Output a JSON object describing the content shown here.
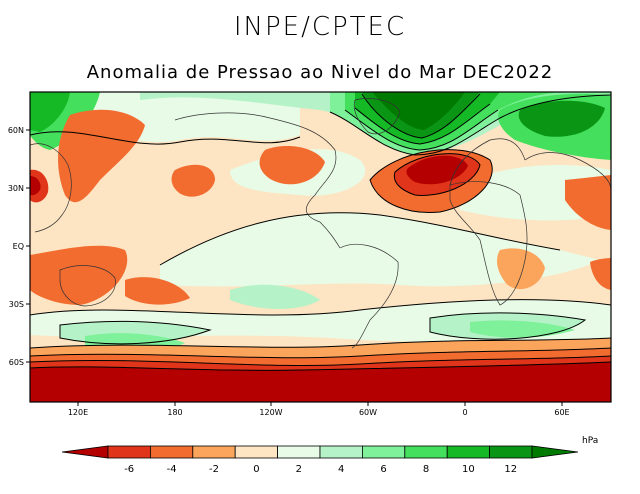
{
  "header": {
    "org": "INPE/CPTEC",
    "title": "Anomalia de Pressao ao Nivel do Mar DEC2022"
  },
  "map": {
    "lat_labels": [
      "60N",
      "30N",
      "EQ",
      "30S",
      "60S"
    ],
    "lon_labels": [
      "120E",
      "180",
      "120W",
      "60W",
      "0",
      "60E"
    ]
  },
  "colorbar": {
    "unit": "hPa",
    "ticks": [
      "-6",
      "-4",
      "-2",
      "0",
      "2",
      "4",
      "6",
      "8",
      "10",
      "12"
    ],
    "colors": [
      "#b40000",
      "#e0351a",
      "#f26b2f",
      "#fba55c",
      "#fde4c2",
      "#e8fbe6",
      "#b6f2c8",
      "#7ef19a",
      "#44df5c",
      "#15b926",
      "#0a9514",
      "#007a00"
    ]
  }
}
